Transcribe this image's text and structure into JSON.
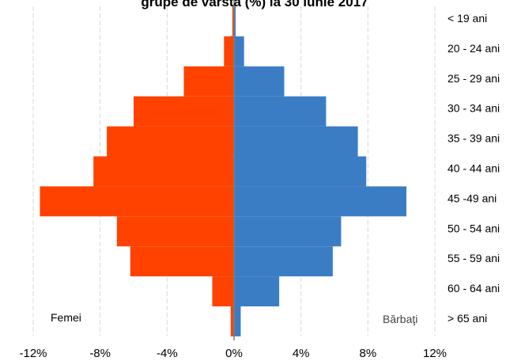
{
  "chart_data": {
    "type": "bar",
    "orientation": "horizontal",
    "title": "grupe de vârstă (%) la 30 iunie 2017",
    "categories": [
      "< 19 ani",
      "20 - 24 ani",
      "25 - 29 ani",
      "30 - 34 ani",
      "35 - 39 ani",
      "40 - 44 ani",
      "45 -49 ani",
      "50 - 54 ani",
      "55 - 59 ani",
      "60 - 64 ani",
      "> 65 ani"
    ],
    "series": [
      {
        "name": "Femei",
        "color": "#ff4200",
        "values": [
          -0.1,
          -0.6,
          -3.0,
          -6.0,
          -7.6,
          -8.4,
          -11.6,
          -7.0,
          -6.2,
          -1.3,
          -0.2
        ]
      },
      {
        "name": "Bărbaţi",
        "color": "#3a7dc4",
        "values": [
          0.1,
          0.6,
          3.0,
          5.5,
          7.4,
          7.9,
          10.3,
          6.4,
          5.9,
          2.7,
          0.4
        ]
      }
    ],
    "x_ticks": [
      "-12%",
      "-8%",
      "-4%",
      "0%",
      "4%",
      "8%",
      "12%"
    ],
    "xlim": [
      -12,
      12
    ],
    "grid": true
  }
}
